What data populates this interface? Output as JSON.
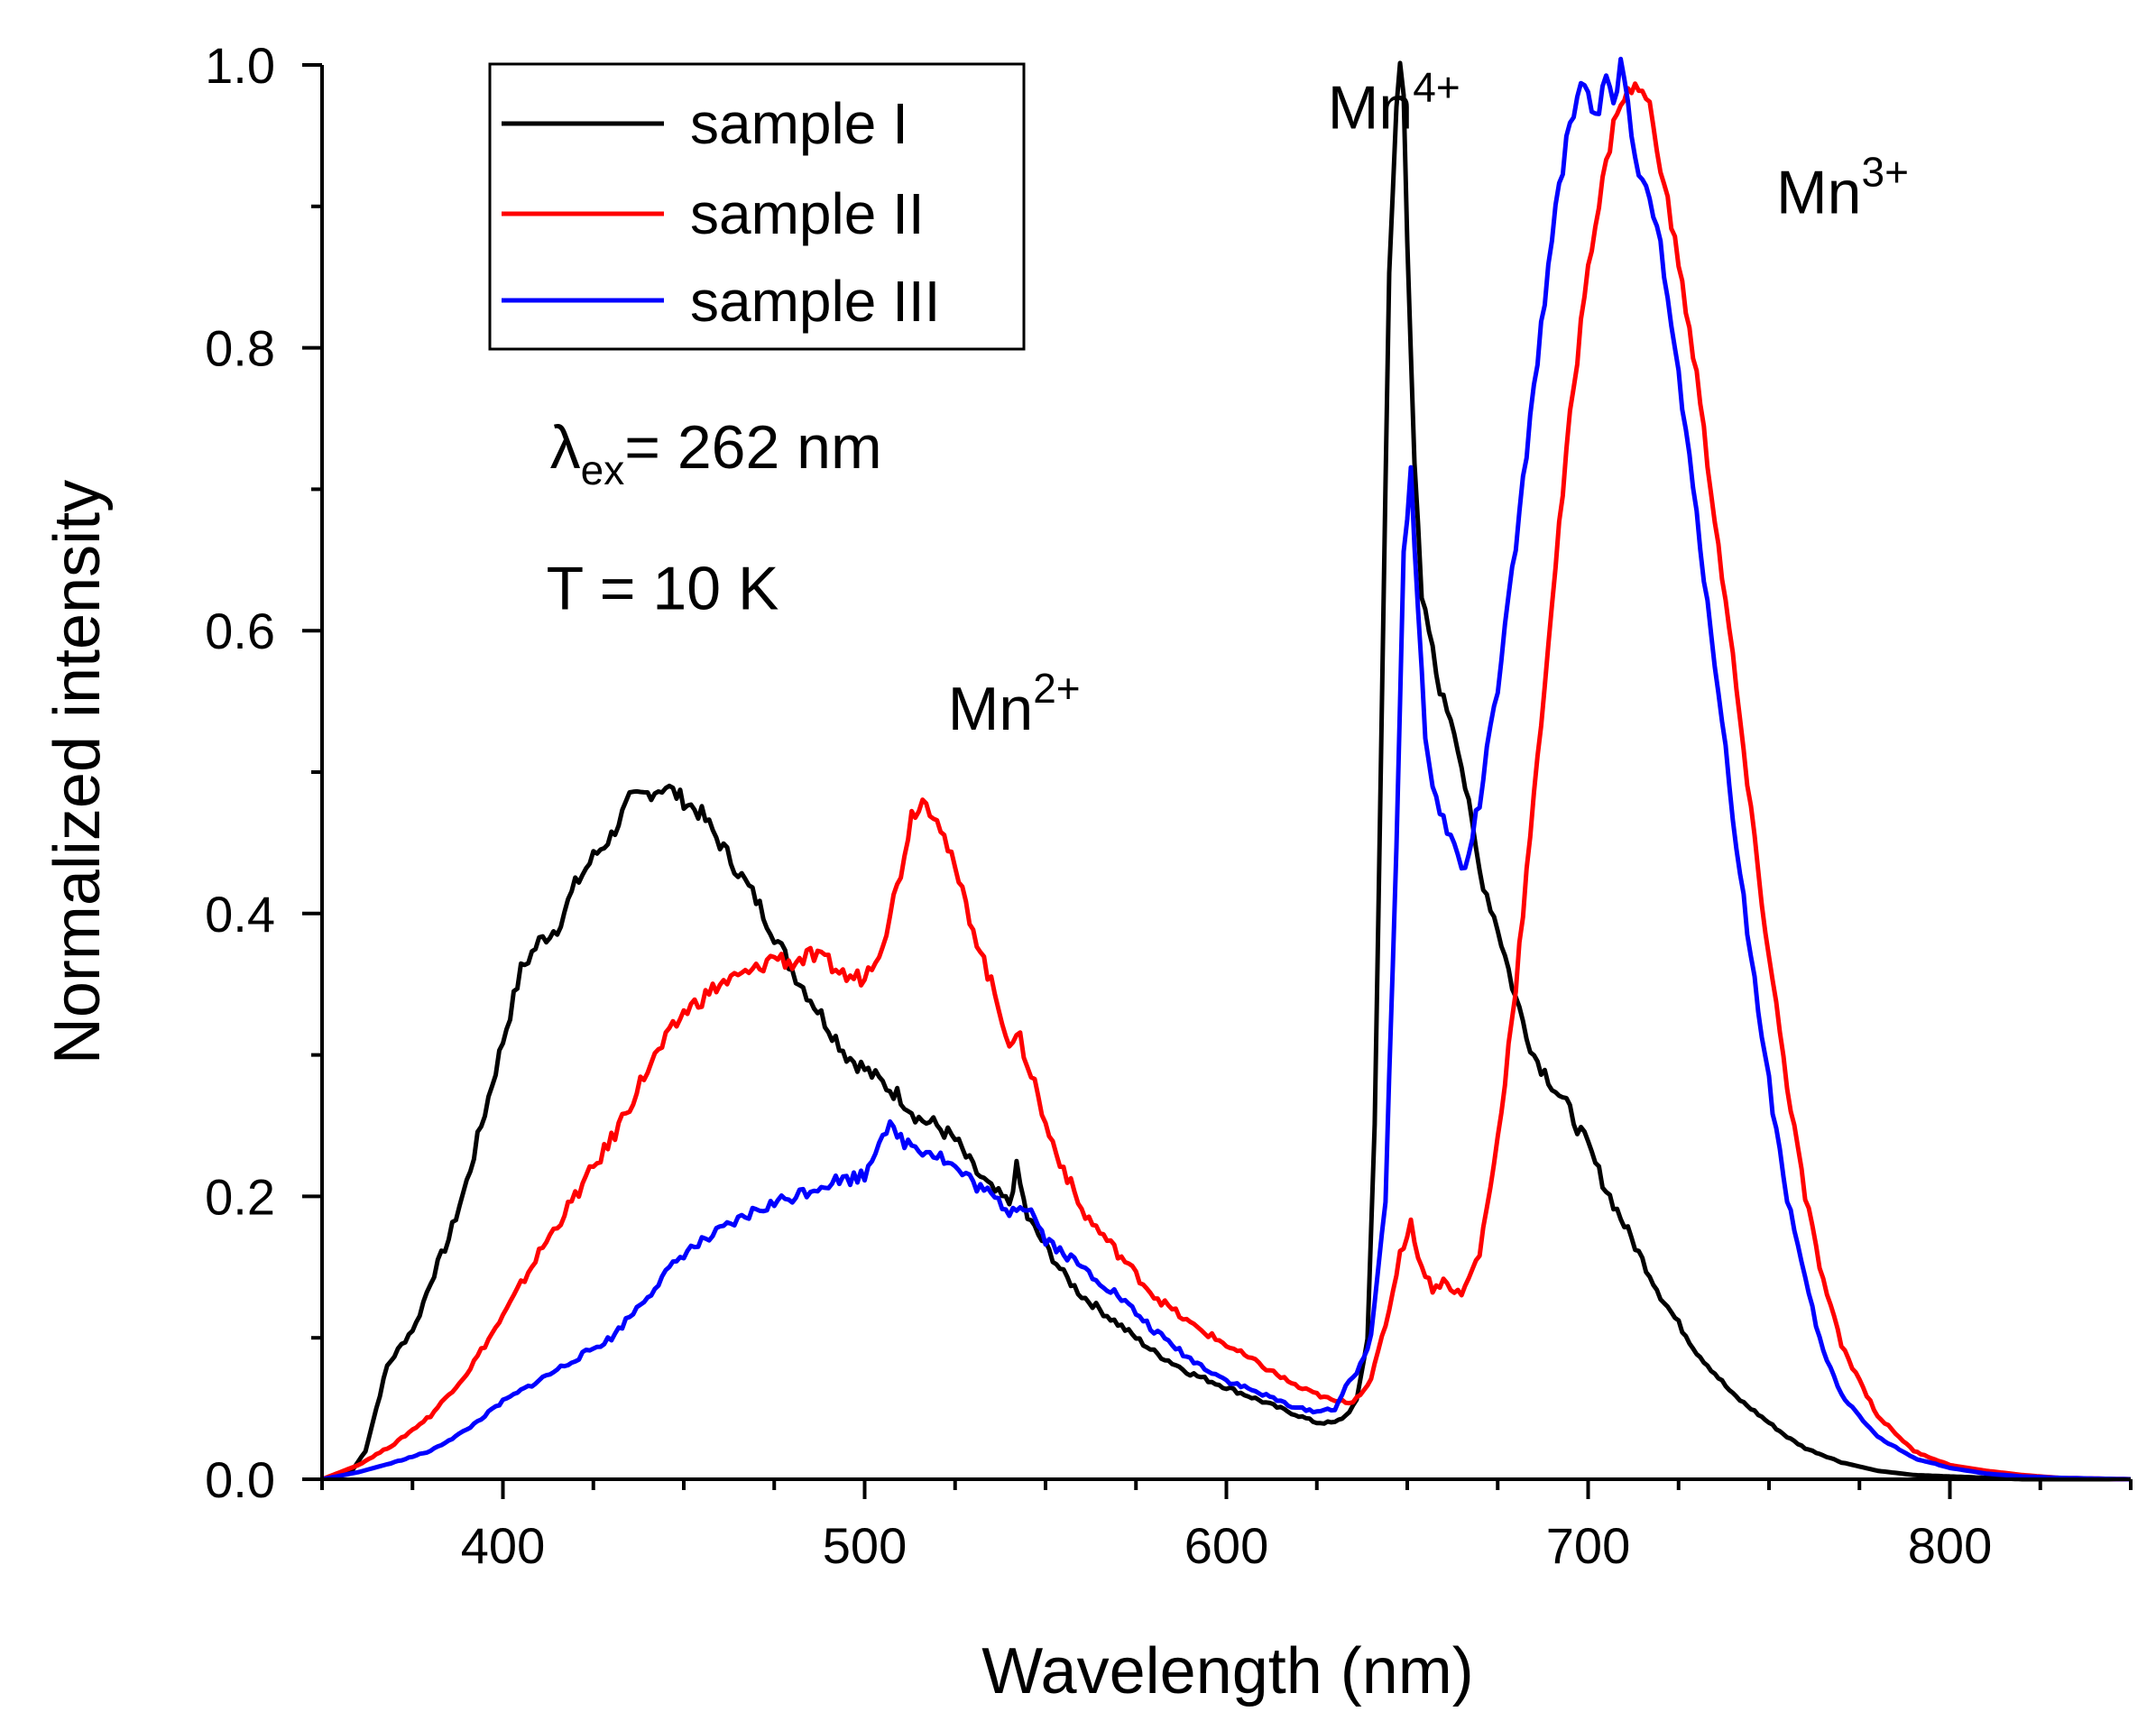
{
  "chart_data": {
    "type": "line",
    "title": "",
    "xlabel": "Wavelength (nm)",
    "ylabel": "Normalized intensity",
    "xlim": [
      350,
      850
    ],
    "ylim": [
      0.0,
      1.0
    ],
    "xticks": [
      400,
      500,
      600,
      700,
      800
    ],
    "yticks": [
      0.0,
      0.2,
      0.4,
      0.6,
      0.8,
      1.0
    ],
    "xtick_labels": [
      "400",
      "500",
      "600",
      "700",
      "800"
    ],
    "ytick_labels": [
      "0.0",
      "0.2",
      "0.4",
      "0.6",
      "0.8",
      "1.0"
    ],
    "grid": false,
    "legend_position": "top-left",
    "series": [
      {
        "name": "sample I",
        "color": "#000000",
        "x": [
          350,
          358,
          362,
          365,
          368,
          372,
          376,
          380,
          385,
          390,
          395,
          400,
          405,
          410,
          415,
          420,
          425,
          430,
          435,
          440,
          445,
          450,
          455,
          460,
          465,
          470,
          475,
          480,
          485,
          490,
          495,
          500,
          505,
          510,
          515,
          520,
          525,
          530,
          535,
          540,
          542,
          545,
          550,
          555,
          560,
          570,
          580,
          590,
          600,
          610,
          620,
          625,
          630,
          633,
          636,
          639,
          641,
          643,
          645,
          647,
          648,
          649,
          650,
          652,
          654,
          656,
          658,
          660,
          662,
          664,
          666,
          668,
          670,
          675,
          680,
          685,
          690,
          695,
          700,
          705,
          710,
          715,
          720,
          725,
          730,
          735,
          740,
          745,
          750,
          755,
          760,
          770,
          780,
          790,
          800,
          810,
          820,
          830,
          850
        ],
        "y": [
          0.0,
          0.005,
          0.02,
          0.05,
          0.08,
          0.095,
          0.11,
          0.14,
          0.17,
          0.21,
          0.26,
          0.31,
          0.36,
          0.38,
          0.39,
          0.42,
          0.44,
          0.455,
          0.48,
          0.485,
          0.49,
          0.48,
          0.47,
          0.45,
          0.43,
          0.41,
          0.385,
          0.36,
          0.34,
          0.32,
          0.3,
          0.29,
          0.28,
          0.27,
          0.255,
          0.25,
          0.24,
          0.22,
          0.205,
          0.195,
          0.22,
          0.185,
          0.165,
          0.145,
          0.13,
          0.11,
          0.09,
          0.075,
          0.065,
          0.055,
          0.045,
          0.04,
          0.04,
          0.045,
          0.055,
          0.1,
          0.25,
          0.55,
          0.85,
          0.97,
          1.0,
          0.98,
          0.88,
          0.72,
          0.62,
          0.6,
          0.57,
          0.55,
          0.54,
          0.52,
          0.49,
          0.46,
          0.43,
          0.39,
          0.34,
          0.3,
          0.28,
          0.26,
          0.235,
          0.205,
          0.18,
          0.155,
          0.13,
          0.11,
          0.09,
          0.075,
          0.06,
          0.05,
          0.04,
          0.03,
          0.022,
          0.012,
          0.006,
          0.003,
          0.002,
          0.001,
          0.0,
          0.0,
          0.0
        ]
      },
      {
        "name": "sample II",
        "color": "#ff0000",
        "x": [
          350,
          360,
          370,
          380,
          390,
          400,
          410,
          420,
          430,
          440,
          450,
          460,
          470,
          475,
          480,
          485,
          490,
          495,
          500,
          505,
          510,
          513,
          516,
          520,
          525,
          530,
          535,
          540,
          543,
          547,
          550,
          555,
          560,
          570,
          580,
          590,
          600,
          610,
          620,
          625,
          630,
          635,
          640,
          645,
          648,
          651,
          654,
          657,
          660,
          665,
          670,
          675,
          680,
          685,
          690,
          695,
          700,
          705,
          708,
          711,
          714,
          717,
          720,
          725,
          730,
          735,
          740,
          745,
          750,
          755,
          760,
          765,
          770,
          780,
          790,
          800,
          810,
          820,
          830,
          850
        ],
        "y": [
          0.0,
          0.01,
          0.025,
          0.045,
          0.075,
          0.115,
          0.16,
          0.2,
          0.24,
          0.29,
          0.33,
          0.35,
          0.36,
          0.37,
          0.365,
          0.37,
          0.365,
          0.355,
          0.355,
          0.38,
          0.43,
          0.47,
          0.48,
          0.47,
          0.43,
          0.39,
          0.35,
          0.31,
          0.31,
          0.28,
          0.25,
          0.22,
          0.19,
          0.16,
          0.13,
          0.11,
          0.095,
          0.08,
          0.065,
          0.06,
          0.055,
          0.055,
          0.07,
          0.12,
          0.16,
          0.18,
          0.15,
          0.135,
          0.14,
          0.13,
          0.16,
          0.24,
          0.35,
          0.48,
          0.62,
          0.75,
          0.86,
          0.93,
          0.97,
          0.98,
          0.985,
          0.97,
          0.93,
          0.86,
          0.78,
          0.68,
          0.58,
          0.47,
          0.37,
          0.28,
          0.2,
          0.14,
          0.095,
          0.045,
          0.02,
          0.01,
          0.006,
          0.003,
          0.001,
          0.0
        ]
      },
      {
        "name": "sample III",
        "color": "#0000ff",
        "x": [
          350,
          360,
          370,
          380,
          390,
          400,
          410,
          420,
          430,
          440,
          450,
          460,
          470,
          480,
          490,
          500,
          503,
          506,
          510,
          520,
          530,
          540,
          543,
          546,
          550,
          560,
          570,
          580,
          590,
          600,
          610,
          620,
          625,
          630,
          633,
          636,
          640,
          644,
          647,
          649,
          651,
          653,
          655,
          658,
          661,
          664,
          666,
          670,
          675,
          680,
          685,
          690,
          695,
          698,
          700,
          702,
          705,
          707,
          709,
          711,
          713,
          716,
          720,
          725,
          730,
          735,
          740,
          745,
          750,
          755,
          760,
          765,
          770,
          780,
          790,
          800,
          810,
          820,
          830,
          850
        ],
        "y": [
          0.0,
          0.005,
          0.012,
          0.02,
          0.035,
          0.055,
          0.07,
          0.085,
          0.1,
          0.13,
          0.16,
          0.175,
          0.19,
          0.2,
          0.21,
          0.215,
          0.235,
          0.25,
          0.24,
          0.23,
          0.21,
          0.19,
          0.195,
          0.19,
          0.17,
          0.15,
          0.13,
          0.105,
          0.085,
          0.07,
          0.06,
          0.05,
          0.048,
          0.05,
          0.065,
          0.075,
          0.1,
          0.2,
          0.45,
          0.65,
          0.71,
          0.62,
          0.52,
          0.48,
          0.46,
          0.44,
          0.43,
          0.48,
          0.56,
          0.66,
          0.77,
          0.88,
          0.96,
          0.985,
          0.985,
          0.96,
          0.99,
          0.97,
          1.0,
          0.97,
          0.93,
          0.92,
          0.87,
          0.78,
          0.68,
          0.58,
          0.47,
          0.37,
          0.28,
          0.2,
          0.14,
          0.09,
          0.06,
          0.03,
          0.015,
          0.008,
          0.004,
          0.002,
          0.001,
          0.0
        ]
      }
    ],
    "annotations": [
      {
        "base": "Mn",
        "sup": "2+",
        "x": 523,
        "y": 0.53
      },
      {
        "base": "Mn",
        "sup": "4+",
        "x": 628,
        "y": 0.955
      },
      {
        "base": "Mn",
        "sup": "3+",
        "x": 752,
        "y": 0.895
      }
    ],
    "condition_lines": [
      {
        "symbol": "λ",
        "sub": "ex",
        "rest": "= 262 nm",
        "x": 413,
        "y": 0.715
      },
      {
        "text": "T = 10 K",
        "x": 412,
        "y": 0.615
      }
    ]
  }
}
